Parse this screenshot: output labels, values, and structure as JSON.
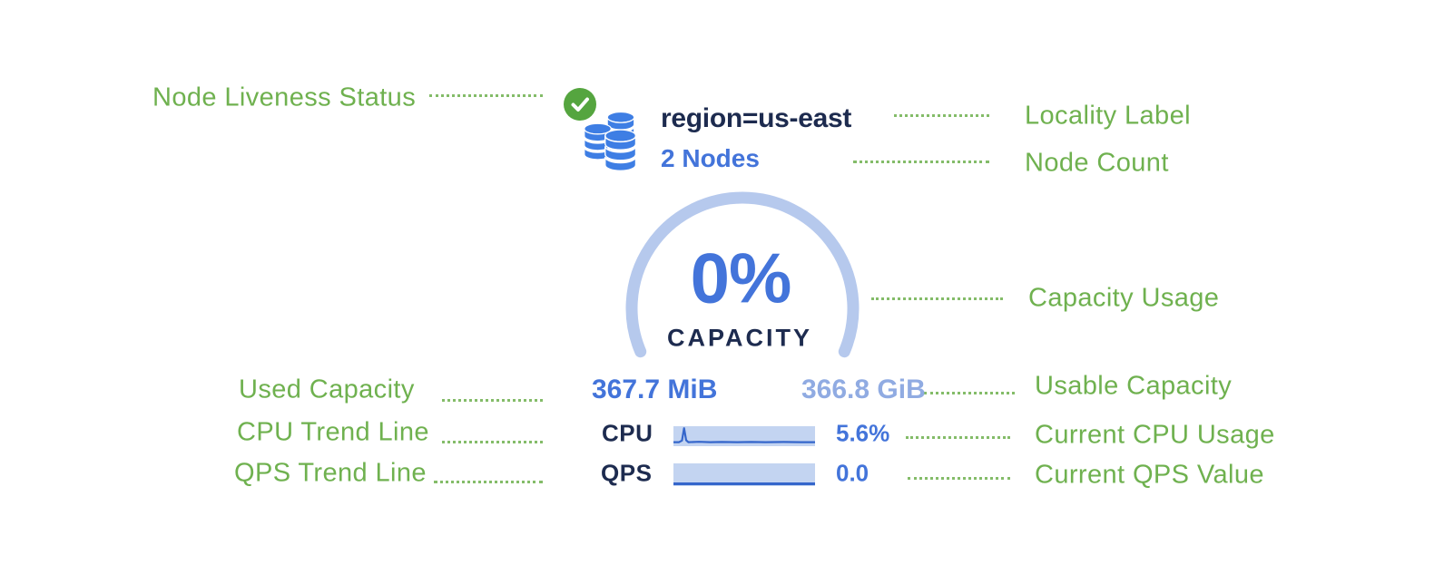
{
  "colors": {
    "green_label": "#6fb14f",
    "green_check_bg": "#55a53f",
    "blue_text": "#4374da",
    "light_blue_text": "#90abe2",
    "navy": "#1d2b4f",
    "icon_blue": "#3e7ee4",
    "gauge_arc": "#b6c9ed",
    "bar_bg": "#c3d4f1",
    "spark_line": "#3566cb"
  },
  "annotations": {
    "node_liveness": "Node Liveness Status",
    "locality": "Locality Label",
    "node_count": "Node Count",
    "capacity_usage": "Capacity Usage",
    "used_capacity": "Used Capacity",
    "usable_capacity": "Usable Capacity",
    "cpu_trend": "CPU Trend Line",
    "current_cpu": "Current CPU Usage",
    "qps_trend": "QPS Trend Line",
    "current_qps": "Current QPS Value"
  },
  "node_widget": {
    "locality_label": "region=us-east",
    "node_count": "2 Nodes",
    "capacity_percent": "0%",
    "capacity_caption": "CAPACITY",
    "used_capacity": "367.7 MiB",
    "usable_capacity": "366.8 GiB",
    "cpu": {
      "label": "CPU",
      "value": "5.6%",
      "sparkline": [
        [
          0,
          0.8
        ],
        [
          0.04,
          0.8
        ],
        [
          0.06,
          0.72
        ],
        [
          0.075,
          0.1
        ],
        [
          0.09,
          0.7
        ],
        [
          0.105,
          0.8
        ],
        [
          0.18,
          0.78
        ],
        [
          0.26,
          0.8
        ],
        [
          0.34,
          0.79
        ],
        [
          0.45,
          0.8
        ],
        [
          0.55,
          0.79
        ],
        [
          0.65,
          0.8
        ],
        [
          0.78,
          0.79
        ],
        [
          0.9,
          0.8
        ],
        [
          1,
          0.8
        ]
      ]
    },
    "qps": {
      "label": "QPS",
      "value": "0.0",
      "sparkline": [
        [
          0,
          0.9
        ],
        [
          1,
          0.9
        ]
      ]
    }
  }
}
